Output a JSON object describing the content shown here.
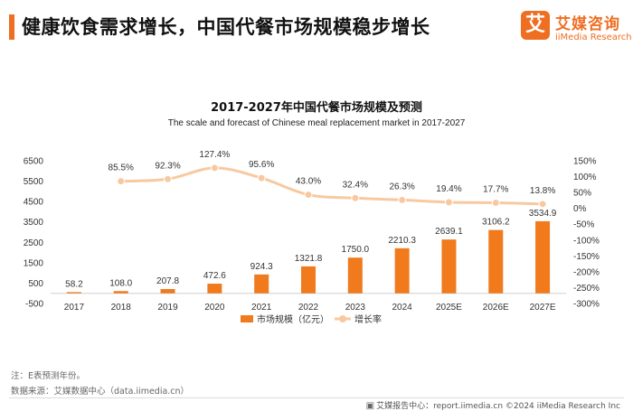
{
  "header": {
    "headline": "健康饮食需求增长，中国代餐市场规模稳步增长",
    "logo_mark": "艾",
    "logo_cn": "艾媒咨询",
    "logo_en": "iiMedia Research"
  },
  "colors": {
    "accent": "#ee6e22",
    "bar": "#f07a1c",
    "line": "#f8c9a0",
    "marker": "#f8c9a0"
  },
  "chart_data": {
    "type": "bar+line",
    "title": "2017-2027年中国代餐市场规模及预测",
    "subtitle": "The scale and forecast of Chinese meal replacement market in 2017-2027",
    "categories": [
      "2017",
      "2018",
      "2019",
      "2020",
      "2021",
      "2022",
      "2023",
      "2024",
      "2025E",
      "2026E",
      "2027E"
    ],
    "series": [
      {
        "name": "市场规模（亿元）",
        "type": "bar",
        "axis": "left",
        "values": [
          58.2,
          108.0,
          207.8,
          472.6,
          924.3,
          1321.8,
          1750.0,
          2210.3,
          2639.1,
          3106.2,
          3534.9
        ],
        "labels": [
          "58.2",
          "108.0",
          "207.8",
          "472.6",
          "924.3",
          "1321.8",
          "1750.0",
          "2210.3",
          "2639.1",
          "3106.2",
          "3534.9"
        ]
      },
      {
        "name": "增长率",
        "type": "line",
        "axis": "right",
        "values": [
          null,
          85.5,
          92.3,
          127.4,
          95.6,
          43.0,
          32.4,
          26.3,
          19.4,
          17.7,
          13.8
        ],
        "labels": [
          "",
          "85.5%",
          "92.3%",
          "127.4%",
          "95.6%",
          "43.0%",
          "32.4%",
          "26.3%",
          "19.4%",
          "17.7%",
          "13.8%"
        ]
      }
    ],
    "y_left": {
      "min": -500,
      "max": 6500,
      "ticks": [
        "6500",
        "5500",
        "4500",
        "3500",
        "2500",
        "1500",
        "500",
        "-500"
      ]
    },
    "y_right": {
      "min": -300,
      "max": 150,
      "ticks": [
        "150%",
        "100%",
        "50%",
        "0%",
        "-50%",
        "-100%",
        "-150%",
        "-200%",
        "-250%",
        "-300%"
      ]
    },
    "legend": {
      "position": "bottom",
      "items": [
        "市场规模（亿元）",
        "增长率"
      ]
    },
    "grid": false
  },
  "footer": {
    "note": "注：E表预测年份。",
    "source": "数据来源：艾媒数据中心（data.iimedia.cn）",
    "right_text": "艾媒报告中心：report.iimedia.cn ©2024 iiMedia Research Inc"
  }
}
